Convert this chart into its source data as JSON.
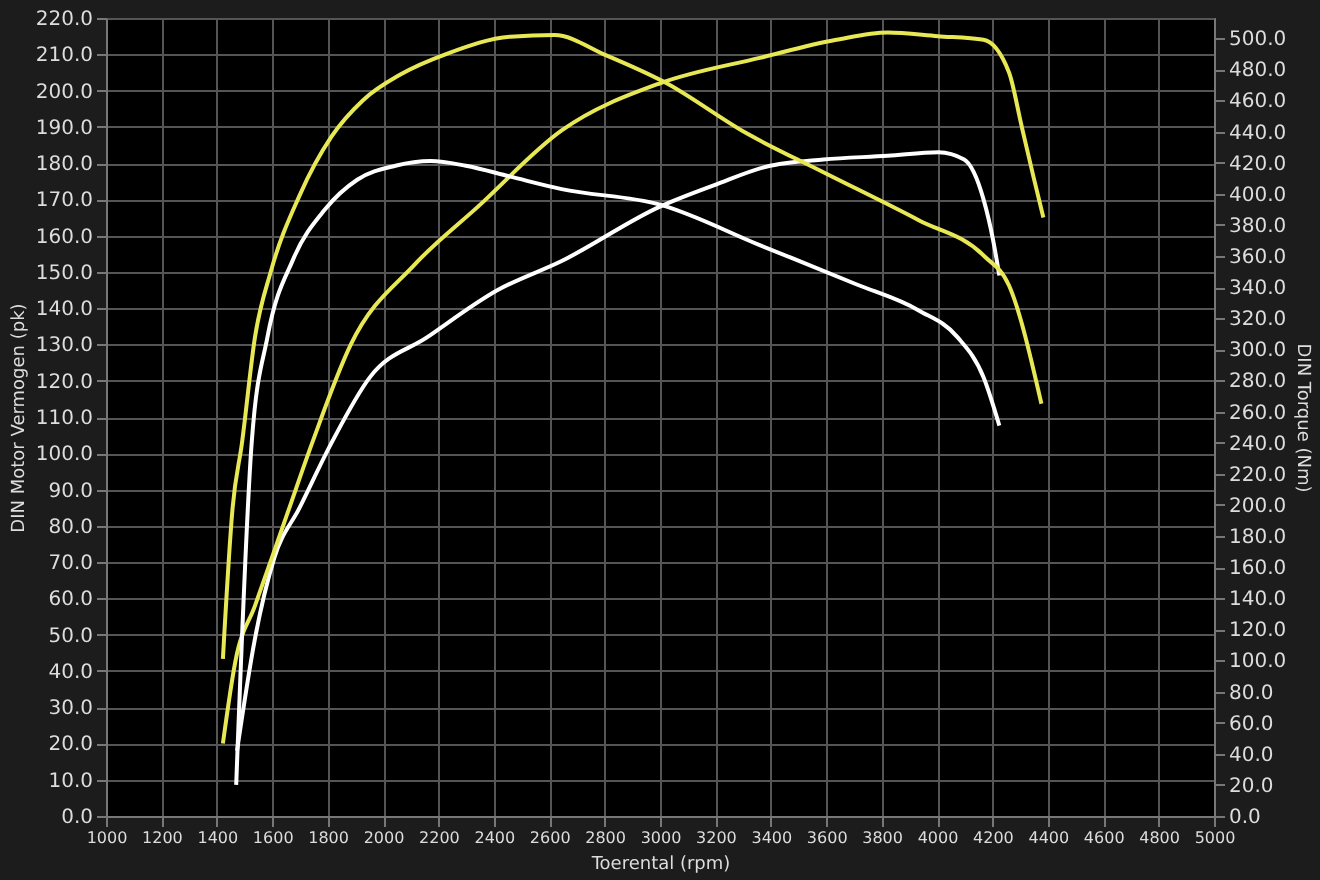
{
  "chart_data": {
    "type": "line",
    "xlabel": "Toerental (rpm)",
    "ylabel": "DIN Motor Vermogen (pk)",
    "y2label": "DIN Torque (Nm)",
    "xlim": [
      1000,
      5000
    ],
    "xticks": [
      1000,
      1200,
      1400,
      1600,
      1800,
      2000,
      2200,
      2400,
      2600,
      2800,
      3000,
      3200,
      3400,
      3600,
      3800,
      4000,
      4200,
      4400,
      4600,
      4800,
      5000
    ],
    "ylim": [
      0,
      220
    ],
    "yticks": [
      {
        "value": 0,
        "label": "0.0"
      },
      {
        "value": 10,
        "label": "10.0"
      },
      {
        "value": 20,
        "label": "20.0"
      },
      {
        "value": 30,
        "label": "30.0"
      },
      {
        "value": 40,
        "label": "40.0"
      },
      {
        "value": 50,
        "label": "50.0"
      },
      {
        "value": 60,
        "label": "60.0"
      },
      {
        "value": 70,
        "label": "70.0"
      },
      {
        "value": 80,
        "label": "80.0"
      },
      {
        "value": 90,
        "label": "90.0"
      },
      {
        "value": 100,
        "label": "100.0"
      },
      {
        "value": 110,
        "label": "110.0"
      },
      {
        "value": 120,
        "label": "120.0"
      },
      {
        "value": 130,
        "label": "130.0"
      },
      {
        "value": 140,
        "label": "140.0"
      },
      {
        "value": 150,
        "label": "150.0"
      },
      {
        "value": 160,
        "label": "160.0"
      },
      {
        "value": 170,
        "label": "170.0"
      },
      {
        "value": 180,
        "label": "180.0"
      },
      {
        "value": 190,
        "label": "190.0"
      },
      {
        "value": 200,
        "label": "200.0"
      },
      {
        "value": 210,
        "label": "210.0"
      },
      {
        "value": 220,
        "label": "220.0"
      }
    ],
    "y2lim": [
      0,
      513
    ],
    "y2ticks": [
      {
        "value": 0,
        "label": "0.0"
      },
      {
        "value": 20,
        "label": "20.0"
      },
      {
        "value": 40,
        "label": "40.0"
      },
      {
        "value": 60,
        "label": "60.0"
      },
      {
        "value": 80,
        "label": "80.0"
      },
      {
        "value": 100,
        "label": "100.0"
      },
      {
        "value": 120,
        "label": "120.0"
      },
      {
        "value": 140,
        "label": "140.0"
      },
      {
        "value": 160,
        "label": "160.0"
      },
      {
        "value": 180,
        "label": "180.0"
      },
      {
        "value": 200,
        "label": "200.0"
      },
      {
        "value": 220,
        "label": "220.0"
      },
      {
        "value": 240,
        "label": "240.0"
      },
      {
        "value": 260,
        "label": "260.0"
      },
      {
        "value": 280,
        "label": "280.0"
      },
      {
        "value": 300,
        "label": "300.0"
      },
      {
        "value": 320,
        "label": "320.0"
      },
      {
        "value": 340,
        "label": "340.0"
      },
      {
        "value": 360,
        "label": "360.0"
      },
      {
        "value": 380,
        "label": "380.0"
      },
      {
        "value": 400,
        "label": "400.0"
      },
      {
        "value": 420,
        "label": "420.0"
      },
      {
        "value": 440,
        "label": "440.0"
      },
      {
        "value": 460,
        "label": "460.0"
      },
      {
        "value": 480,
        "label": "480.0"
      },
      {
        "value": 500,
        "label": "500.0"
      }
    ],
    "grid": true,
    "legend": false,
    "line_style": "solid",
    "marker": "none",
    "series": [
      {
        "color": "#ffffff",
        "x": [
          1473,
          1538,
          1607,
          1699,
          1815,
          1953,
          2160,
          2414,
          2645,
          3000,
          3199,
          3383,
          3590,
          3822,
          4005,
          4098,
          4168,
          4202,
          4225
        ],
        "values": [
          18,
          49,
          71,
          85,
          103,
          121,
          132,
          145,
          153,
          168,
          174,
          179,
          181,
          182,
          183,
          181,
          170,
          159,
          149
        ]
      },
      {
        "color": "#e8e855",
        "x": [
          1422,
          1468,
          1538,
          1653,
          1745,
          1884,
          2114,
          2343,
          2645,
          3000,
          3360,
          3637,
          3822,
          4003,
          4168,
          4260,
          4306,
          4349,
          4384
        ],
        "values": [
          20,
          43,
          58,
          83,
          103,
          130,
          152,
          168,
          189,
          202,
          209,
          214,
          216,
          215,
          214,
          205,
          190,
          176,
          165
        ]
      },
      {
        "color": "#ffffff",
        "axis": "y2",
        "x": [
          1470,
          1526,
          1583,
          1676,
          1791,
          1907,
          2045,
          2172,
          2299,
          2460,
          2645,
          3000,
          3360,
          3706,
          3934,
          4073,
          4168,
          4225
        ],
        "values": [
          20,
          240,
          308,
          358,
          390,
          409,
          418,
          421,
          418,
          411,
          403,
          393,
          367,
          342,
          325,
          308,
          282,
          251
        ]
      },
      {
        "color": "#e8e855",
        "axis": "y2",
        "x": [
          1422,
          1457,
          1491,
          1538,
          1595,
          1699,
          1815,
          1927,
          2066,
          2230,
          2460,
          2619,
          2806,
          3014,
          3311,
          3588,
          3934,
          4170,
          4260,
          4377
        ],
        "values": [
          101,
          198,
          240,
          308,
          350,
          399,
          437,
          460,
          477,
          490,
          501,
          502,
          489,
          472,
          439,
          414,
          383,
          360,
          341,
          265
        ]
      }
    ]
  }
}
